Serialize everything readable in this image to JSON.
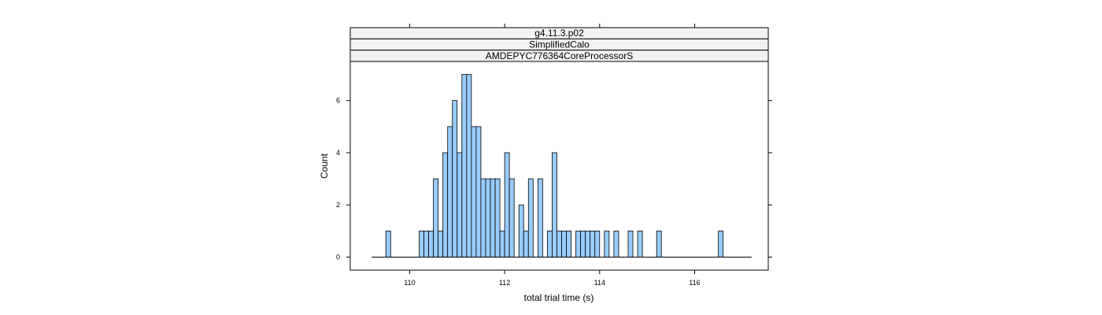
{
  "chart_data": {
    "type": "bar",
    "strips": [
      "g4.11.3.p02",
      "SimplifiedCalo",
      "AMDEPYC776364CoreProcessorS"
    ],
    "xlabel": "total trial time (s)",
    "ylabel": "Count",
    "xlim": [
      108.75,
      117.55
    ],
    "ylim": [
      -0.5,
      7.5
    ],
    "xticks": [
      110,
      112,
      114,
      116
    ],
    "yticks": [
      0,
      2,
      4,
      6
    ],
    "bin_start": 109.2,
    "bin_width": 0.1,
    "counts": [
      0,
      0,
      0,
      1,
      0,
      0,
      0,
      0,
      0,
      0,
      1,
      1,
      1,
      3,
      1,
      4,
      5,
      6,
      4,
      7,
      7,
      5,
      5,
      3,
      3,
      3,
      3,
      1,
      4,
      3,
      0,
      2,
      1,
      3,
      0,
      3,
      0,
      1,
      4,
      1,
      1,
      1,
      0,
      1,
      1,
      1,
      1,
      1,
      0,
      1,
      0,
      1,
      0,
      0,
      1,
      0,
      1,
      0,
      0,
      0,
      1,
      0,
      0,
      0,
      0,
      0,
      0,
      0,
      0,
      0,
      0,
      0,
      0,
      1,
      0,
      0,
      0,
      0,
      0,
      0
    ],
    "bar_color": "#99ccff",
    "bar_border": "#000000",
    "grid": false,
    "legend": "none"
  }
}
